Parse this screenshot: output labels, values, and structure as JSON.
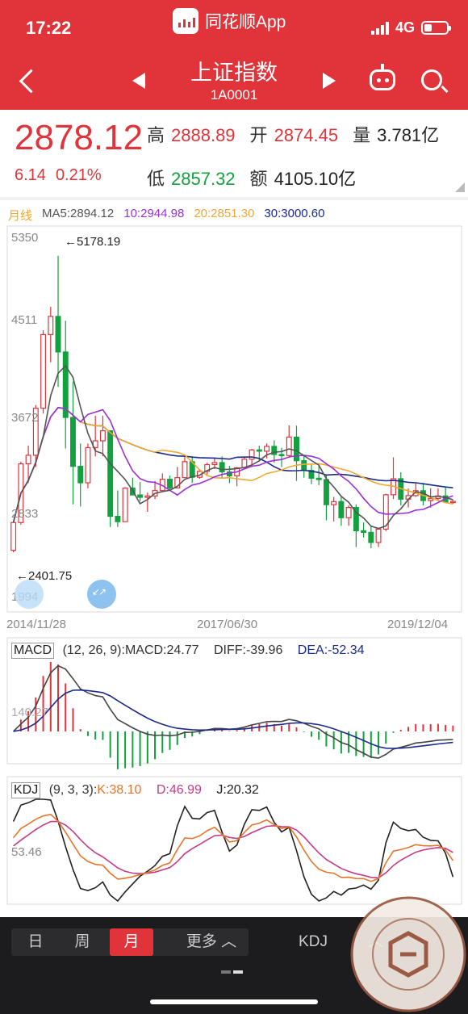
{
  "status": {
    "time": "17:22",
    "app_name": "同花顺App",
    "network": "4G"
  },
  "header": {
    "title": "上证指数",
    "code": "1A0001"
  },
  "quote": {
    "price": "2878.12",
    "change": "6.14",
    "change_pct": "0.21%",
    "high_label": "高",
    "high": "2888.89",
    "open_label": "开",
    "open": "2874.45",
    "volume_label": "量",
    "volume": "3.781亿",
    "low_label": "低",
    "low": "2857.32",
    "amount_label": "额",
    "amount": "4105.10亿"
  },
  "ma": {
    "period": "月线",
    "ma5": "MA5:2894.12",
    "ma10": "10:2944.98",
    "ma20": "20:2851.30",
    "ma30": "30:3000.60"
  },
  "colors": {
    "up": "#e0343a",
    "down": "#12a13f",
    "ma5": "#555555",
    "ma10": "#9b30d9",
    "ma20": "#f0a830",
    "ma30": "#1a2a8c"
  },
  "main_chart": {
    "y_ticks": [
      "5350",
      "4511",
      "3672",
      "2833",
      "1994"
    ],
    "max_annotation": "←5178.19",
    "min_annotation": "←2401.75",
    "dates": [
      "2014/11/28",
      "2017/06/30",
      "2019/12/04"
    ]
  },
  "macd": {
    "name": "MACD",
    "params": "(12, 26, 9):MACD:24.77",
    "diff": "DIFF:-39.96",
    "dea": "DEA:-52.34",
    "axis": "140.27"
  },
  "kdj": {
    "name": "KDJ",
    "params": "(9, 3, 3):",
    "k": "K:38.10",
    "d": "D:46.99",
    "j": "J:20.32",
    "axis": "53.46"
  },
  "bottom_tabs": {
    "day": "日",
    "week": "周",
    "month": "月",
    "more": "更多",
    "indicator": "KDJ"
  },
  "chart_data": {
    "type": "candlestick",
    "series_name": "上证指数 月线",
    "x_range": [
      "2014/11/28",
      "2019/12/04"
    ],
    "ylim": [
      1994,
      5350
    ],
    "candles": [
      [
        2420,
        2680,
        2401.75,
        2700
      ],
      [
        2680,
        3230,
        2660,
        3250
      ],
      [
        3230,
        3310,
        3050,
        3400
      ],
      [
        3310,
        3750,
        3200,
        3780
      ],
      [
        3750,
        4440,
        3700,
        4480
      ],
      [
        4440,
        4610,
        4180,
        4700
      ],
      [
        4610,
        4277,
        3950,
        5178.19
      ],
      [
        4277,
        3664,
        3373,
        4570
      ],
      [
        3664,
        3206,
        2850,
        4000
      ],
      [
        3206,
        3052,
        2830,
        3420
      ],
      [
        3052,
        3382,
        3000,
        3420
      ],
      [
        3382,
        3445,
        3300,
        3680
      ],
      [
        3445,
        3539,
        3300,
        3680
      ],
      [
        3539,
        2738,
        2638,
        3540
      ],
      [
        2738,
        2688,
        2638,
        2980
      ],
      [
        2688,
        3003,
        2700,
        3010
      ],
      [
        3003,
        2938,
        2950,
        3100
      ],
      [
        2938,
        2916,
        2880,
        3060
      ],
      [
        2916,
        2929,
        2780,
        2960
      ],
      [
        2929,
        2979,
        2900,
        3070
      ],
      [
        2979,
        3085,
        3000,
        3140
      ],
      [
        3085,
        3004,
        2990,
        3120
      ],
      [
        3004,
        3100,
        3000,
        3200
      ],
      [
        3100,
        3250,
        3100,
        3300
      ],
      [
        3250,
        3104,
        3050,
        3300
      ],
      [
        3104,
        3159,
        3090,
        3180
      ],
      [
        3159,
        3222,
        3130,
        3240
      ],
      [
        3222,
        3241,
        3180,
        3290
      ],
      [
        3241,
        3154,
        3100,
        3300
      ],
      [
        3154,
        3117,
        3050,
        3210
      ],
      [
        3117,
        3192,
        3020,
        3200
      ],
      [
        3192,
        3273,
        3180,
        3290
      ],
      [
        3273,
        3360,
        3200,
        3370
      ],
      [
        3360,
        3348,
        3250,
        3400
      ],
      [
        3348,
        3393,
        3280,
        3420
      ],
      [
        3393,
        3317,
        3240,
        3450
      ],
      [
        3317,
        3307,
        3200,
        3380
      ],
      [
        3307,
        3480,
        3300,
        3590
      ],
      [
        3480,
        3259,
        3070,
        3587
      ],
      [
        3259,
        3168,
        3100,
        3300
      ],
      [
        3168,
        3095,
        3040,
        3220
      ],
      [
        3095,
        3082,
        3030,
        3220
      ],
      [
        3082,
        2847,
        2700,
        3130
      ],
      [
        2847,
        2876,
        2690,
        2920
      ],
      [
        2876,
        2725,
        2650,
        2920
      ],
      [
        2725,
        2821,
        2650,
        2840
      ],
      [
        2821,
        2603,
        2450,
        2850
      ],
      [
        2603,
        2588,
        2540,
        2680
      ],
      [
        2588,
        2493,
        2440,
        2650
      ],
      [
        2493,
        2618,
        2450,
        2630
      ],
      [
        2618,
        2940,
        2600,
        2950
      ],
      [
        2940,
        3090,
        2900,
        3290
      ],
      [
        3090,
        2899,
        2840,
        3150
      ],
      [
        2899,
        2932,
        2820,
        3000
      ],
      [
        2932,
        2978,
        2920,
        3050
      ],
      [
        2978,
        2886,
        2840,
        3050
      ],
      [
        2886,
        2905,
        2820,
        3000
      ],
      [
        2905,
        2929,
        2880,
        3000
      ],
      [
        2929,
        2871,
        2860,
        3010
      ],
      [
        2871,
        2878,
        2857.32,
        2890
      ]
    ]
  }
}
